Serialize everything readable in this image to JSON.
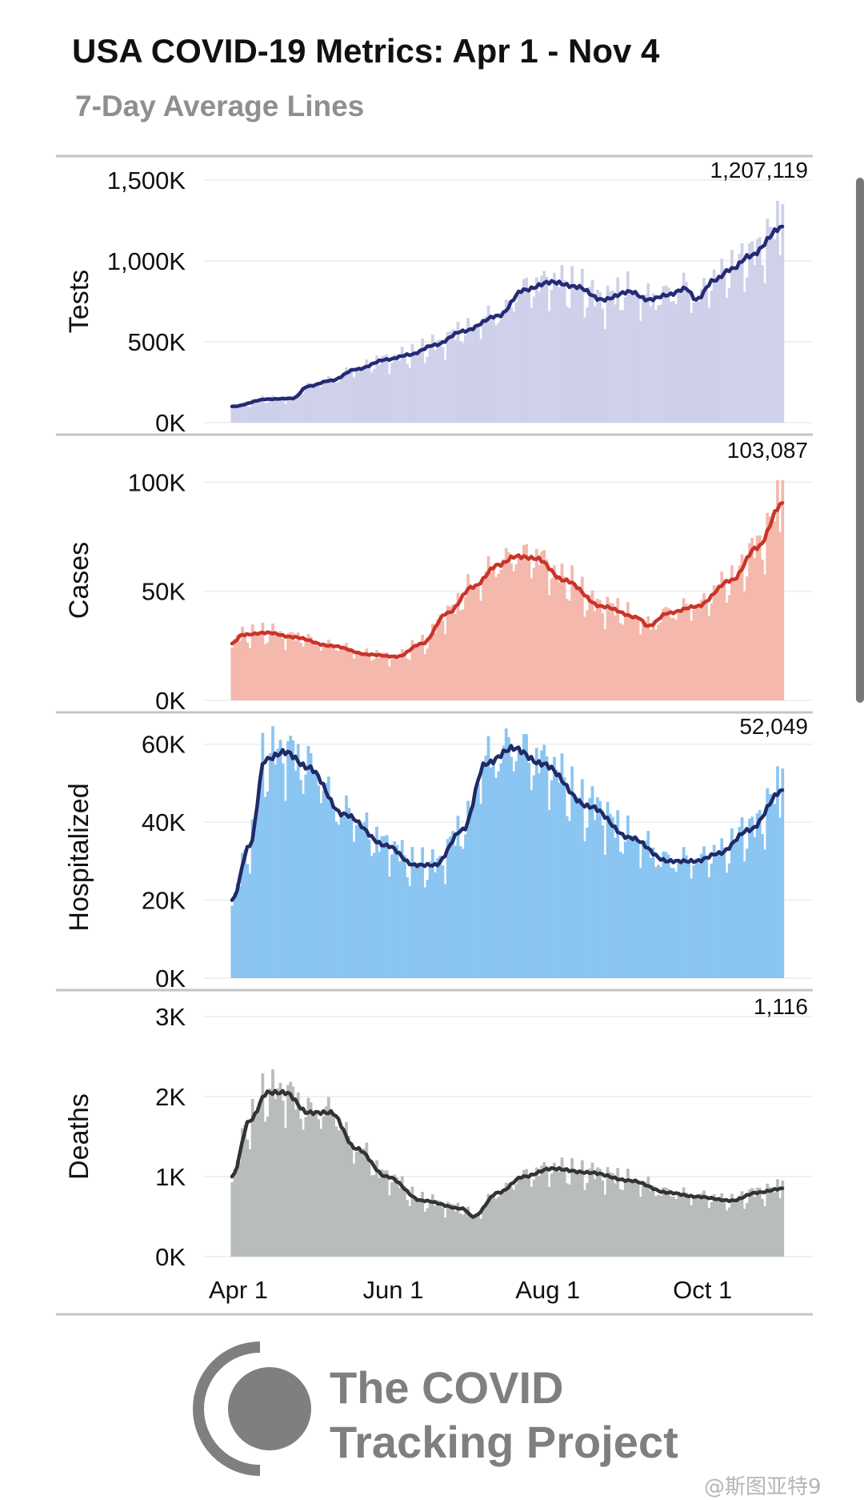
{
  "header": {
    "title": "USA COVID-19 Metrics: Apr 1 - Nov 4",
    "subtitle": "7-Day Average Lines"
  },
  "x_axis": {
    "ticks": [
      "Apr 1",
      "Jun 1",
      "Aug 1",
      "Oct 1"
    ],
    "tick_dates": [
      "2020-04-01",
      "2020-06-01",
      "2020-08-01",
      "2020-10-01"
    ],
    "range": [
      "2020-04-01",
      "2020-11-04"
    ]
  },
  "chart_data": [
    {
      "type": "bar",
      "ylabel": "Tests",
      "ylim": [
        0,
        1500000
      ],
      "yticks": [
        0,
        500000,
        1000000,
        1500000
      ],
      "ytick_labels": [
        "0K",
        "500K",
        "1,000K",
        "1,500K"
      ],
      "latest_label": "1,207,119",
      "bar_color": "#cfd0ea",
      "line_color": "#252a74",
      "grid": true,
      "series": [
        {
          "name": "Tests",
          "values_keypoints": [
            [
              "2020-04-01",
              100000
            ],
            [
              "2020-04-15",
              145000
            ],
            [
              "2020-04-25",
              150000
            ],
            [
              "2020-05-01",
              225000
            ],
            [
              "2020-05-10",
              260000
            ],
            [
              "2020-05-20",
              330000
            ],
            [
              "2020-06-01",
              390000
            ],
            [
              "2020-06-10",
              420000
            ],
            [
              "2020-06-20",
              480000
            ],
            [
              "2020-07-01",
              565000
            ],
            [
              "2020-07-15",
              660000
            ],
            [
              "2020-07-25",
              820000
            ],
            [
              "2020-08-05",
              870000
            ],
            [
              "2020-08-15",
              840000
            ],
            [
              "2020-08-25",
              760000
            ],
            [
              "2020-09-05",
              810000
            ],
            [
              "2020-09-12",
              760000
            ],
            [
              "2020-09-20",
              790000
            ],
            [
              "2020-09-27",
              830000
            ],
            [
              "2020-10-01",
              760000
            ],
            [
              "2020-10-08",
              880000
            ],
            [
              "2020-10-15",
              950000
            ],
            [
              "2020-10-22",
              1030000
            ],
            [
              "2020-11-04",
              1207119
            ]
          ]
        }
      ]
    },
    {
      "type": "bar",
      "ylabel": "Cases",
      "ylim": [
        0,
        110000
      ],
      "yticks": [
        0,
        50000,
        100000
      ],
      "ytick_labels": [
        "0K",
        "50K",
        "100K"
      ],
      "latest_label": "103,087",
      "bar_color": "#f4b8ac",
      "line_color": "#c9342a",
      "grid": true,
      "series": [
        {
          "name": "Cases",
          "values_keypoints": [
            [
              "2020-04-01",
              26000
            ],
            [
              "2020-04-05",
              30000
            ],
            [
              "2020-04-15",
              31000
            ],
            [
              "2020-04-25",
              29000
            ],
            [
              "2020-05-10",
              25000
            ],
            [
              "2020-05-25",
              21000
            ],
            [
              "2020-06-05",
              20000
            ],
            [
              "2020-06-15",
              26000
            ],
            [
              "2020-06-25",
              40000
            ],
            [
              "2020-07-05",
              52000
            ],
            [
              "2020-07-15",
              62000
            ],
            [
              "2020-07-22",
              66000
            ],
            [
              "2020-07-30",
              65000
            ],
            [
              "2020-08-10",
              55000
            ],
            [
              "2020-08-25",
              43000
            ],
            [
              "2020-09-08",
              38000
            ],
            [
              "2020-09-12",
              34000
            ],
            [
              "2020-09-20",
              40000
            ],
            [
              "2020-10-01",
              43000
            ],
            [
              "2020-10-15",
              55000
            ],
            [
              "2020-10-25",
              70000
            ],
            [
              "2020-11-04",
              90000
            ]
          ]
        }
      ]
    },
    {
      "type": "bar",
      "ylabel": "Hospitalized",
      "ylim": [
        0,
        62000
      ],
      "yticks": [
        0,
        20000,
        40000,
        60000
      ],
      "ytick_labels": [
        "0K",
        "20K",
        "40K",
        "60K"
      ],
      "latest_label": "52,049",
      "bar_color": "#8bc5f2",
      "line_color": "#1f2a66",
      "grid": true,
      "series": [
        {
          "name": "Hospitalized",
          "values_keypoints": [
            [
              "2020-04-01",
              20000
            ],
            [
              "2020-04-08",
              34000
            ],
            [
              "2020-04-14",
              56000
            ],
            [
              "2020-04-22",
              58000
            ],
            [
              "2020-05-01",
              54000
            ],
            [
              "2020-05-15",
              42000
            ],
            [
              "2020-06-01",
              34000
            ],
            [
              "2020-06-12",
              29000
            ],
            [
              "2020-06-20",
              29000
            ],
            [
              "2020-07-01",
              38000
            ],
            [
              "2020-07-10",
              55000
            ],
            [
              "2020-07-21",
              59000
            ],
            [
              "2020-08-01",
              55000
            ],
            [
              "2020-08-20",
              44000
            ],
            [
              "2020-09-05",
              36000
            ],
            [
              "2020-09-20",
              30000
            ],
            [
              "2020-10-01",
              30000
            ],
            [
              "2020-10-10",
              32000
            ],
            [
              "2020-10-22",
              38000
            ],
            [
              "2020-11-04",
              48000
            ]
          ]
        }
      ]
    },
    {
      "type": "bar",
      "ylabel": "Deaths",
      "ylim": [
        0,
        3000
      ],
      "yticks": [
        0,
        1000,
        2000,
        3000
      ],
      "ytick_labels": [
        "0K",
        "1K",
        "2K",
        "3K"
      ],
      "latest_label": "1,116",
      "bar_color": "#b8bcbd",
      "line_color": "#333333",
      "grid": true,
      "series": [
        {
          "name": "Deaths",
          "values_keypoints": [
            [
              "2020-04-01",
              1000
            ],
            [
              "2020-04-08",
              1700
            ],
            [
              "2020-04-15",
              2050
            ],
            [
              "2020-04-22",
              2050
            ],
            [
              "2020-05-01",
              1800
            ],
            [
              "2020-05-10",
              1800
            ],
            [
              "2020-05-20",
              1350
            ],
            [
              "2020-06-01",
              1000
            ],
            [
              "2020-06-15",
              700
            ],
            [
              "2020-07-01",
              600
            ],
            [
              "2020-07-05",
              500
            ],
            [
              "2020-07-15",
              800
            ],
            [
              "2020-07-25",
              1000
            ],
            [
              "2020-08-05",
              1100
            ],
            [
              "2020-08-20",
              1050
            ],
            [
              "2020-09-05",
              950
            ],
            [
              "2020-09-20",
              800
            ],
            [
              "2020-10-01",
              750
            ],
            [
              "2020-10-15",
              700
            ],
            [
              "2020-10-25",
              800
            ],
            [
              "2020-11-04",
              850
            ]
          ]
        }
      ]
    }
  ],
  "logo": {
    "line1": "The COVID",
    "line2": "Tracking Project",
    "icon": "covid-tracking-project-logo-icon"
  },
  "watermark": "@斯图亚特9"
}
